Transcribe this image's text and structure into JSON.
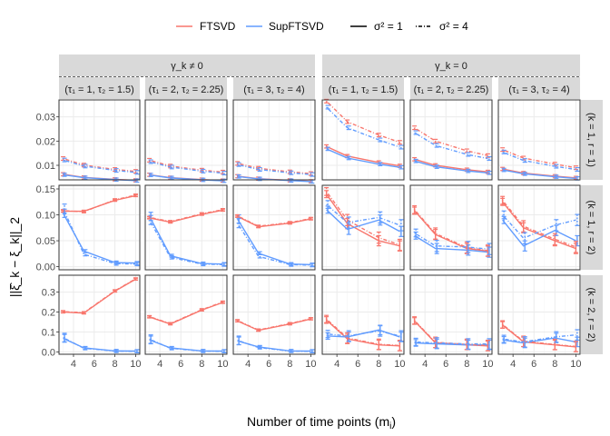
{
  "chart_data": {
    "type": "line",
    "xlabel": "Number of time points (m",
    "xlabel_sub": "i",
    "xlabel_close": ")",
    "ylabel": "||ξ̂_k − ξ_k||_2",
    "x": [
      3,
      5,
      8,
      10
    ],
    "x_ticks": [
      4,
      6,
      8,
      10
    ],
    "legend": {
      "placement": "top",
      "methods": [
        {
          "name": "FTSVD",
          "color": "#F8766D"
        },
        {
          "name": "SupFTSVD",
          "color": "#619CFF"
        }
      ],
      "linetypes": [
        {
          "name": "σ² = 1",
          "style": "solid"
        },
        {
          "name": "σ² = 4",
          "style": "dotdash"
        }
      ]
    },
    "groups": [
      "γ_k ≠ 0",
      "γ_k = 0"
    ],
    "columns": [
      "(τ₁ = 1, τ₂ = 1.5)",
      "(τ₁ = 2, τ₂ = 2.25)",
      "(τ₁ = 3, τ₂ = 4)",
      "(τ₁ = 1, τ₂ = 1.5)",
      "(τ₁ = 2, τ₂ = 2.25)",
      "(τ₁ = 3, τ₂ = 4)"
    ],
    "rows": [
      {
        "label": "(k = 1, r = 1)",
        "ylim": [
          0.004,
          0.037
        ],
        "yticks": [
          0.01,
          0.02,
          0.03
        ],
        "ytick_labels": [
          "0.01",
          "0.02",
          "0.03"
        ],
        "panels": [
          {
            "FTSVD_1": [
              0.0063,
              0.005,
              0.0042,
              0.0038
            ],
            "SupFTSVD_1": [
              0.0061,
              0.0049,
              0.0041,
              0.0037
            ],
            "FTSVD_4": [
              0.0128,
              0.0101,
              0.0083,
              0.0075
            ],
            "SupFTSVD_4": [
              0.0122,
              0.0097,
              0.0079,
              0.0071
            ]
          },
          {
            "FTSVD_1": [
              0.0061,
              0.0049,
              0.0041,
              0.0037
            ],
            "SupFTSVD_1": [
              0.006,
              0.0048,
              0.004,
              0.0036
            ],
            "FTSVD_4": [
              0.0121,
              0.0097,
              0.008,
              0.0072
            ],
            "SupFTSVD_4": [
              0.0115,
              0.0093,
              0.0076,
              0.0068
            ]
          },
          {
            "FTSVD_1": [
              0.0055,
              0.0045,
              0.0038,
              0.0034
            ],
            "SupFTSVD_1": [
              0.0054,
              0.0044,
              0.0037,
              0.0033
            ],
            "FTSVD_4": [
              0.0108,
              0.0088,
              0.0073,
              0.0066
            ],
            "SupFTSVD_4": [
              0.0103,
              0.0083,
              0.0069,
              0.0062
            ]
          },
          {
            "FTSVD_1": [
              0.0178,
              0.0138,
              0.0112,
              0.0098
            ],
            "SupFTSVD_1": [
              0.0168,
              0.013,
              0.0105,
              0.0092
            ],
            "FTSVD_4": [
              0.0365,
              0.028,
              0.0225,
              0.0195
            ],
            "SupFTSVD_4": [
              0.034,
              0.0255,
              0.0205,
              0.0175
            ]
          },
          {
            "FTSVD_1": [
              0.0125,
              0.01,
              0.0082,
              0.0073
            ],
            "SupFTSVD_1": [
              0.0118,
              0.0094,
              0.0077,
              0.0069
            ],
            "FTSVD_4": [
              0.0255,
              0.02,
              0.016,
              0.014
            ],
            "SupFTSVD_4": [
              0.0235,
              0.0182,
              0.0145,
              0.0128
            ]
          },
          {
            "FTSVD_1": [
              0.0085,
              0.0068,
              0.0055,
              0.0048
            ],
            "SupFTSVD_1": [
              0.0081,
              0.0065,
              0.0053,
              0.0046
            ],
            "FTSVD_4": [
              0.0165,
              0.013,
              0.0105,
              0.009
            ],
            "SupFTSVD_4": [
              0.0155,
              0.012,
              0.0096,
              0.0083
            ]
          }
        ]
      },
      {
        "label": "(k = 1, r = 2)",
        "ylim": [
          -0.006,
          0.157
        ],
        "yticks": [
          0.0,
          0.05,
          0.1,
          0.15
        ],
        "ytick_labels": [
          "0.00",
          "0.05",
          "0.10",
          "0.15"
        ],
        "panels": [
          {
            "FTSVD_1": [
              0.107,
              0.107,
              0.128,
              0.137
            ],
            "SupFTSVD_1": [
              0.103,
              0.03,
              0.008,
              0.007
            ],
            "FTSVD_4": [
              0.108,
              0.106,
              0.129,
              0.138
            ],
            "SupFTSVD_4": [
              0.112,
              0.024,
              0.006,
              0.005
            ]
          },
          {
            "FTSVD_1": [
              0.094,
              0.086,
              0.101,
              0.109
            ],
            "SupFTSVD_1": [
              0.097,
              0.021,
              0.006,
              0.005
            ],
            "FTSVD_4": [
              0.095,
              0.087,
              0.102,
              0.11
            ],
            "SupFTSVD_4": [
              0.09,
              0.018,
              0.005,
              0.004
            ]
          },
          {
            "FTSVD_1": [
              0.097,
              0.077,
              0.084,
              0.092
            ],
            "SupFTSVD_1": [
              0.092,
              0.026,
              0.005,
              0.004
            ],
            "FTSVD_4": [
              0.098,
              0.078,
              0.085,
              0.093
            ],
            "SupFTSVD_4": [
              0.084,
              0.02,
              0.004,
              0.003
            ]
          },
          {
            "FTSVD_1": [
              0.14,
              0.083,
              0.05,
              0.04
            ],
            "SupFTSVD_1": [
              0.11,
              0.072,
              0.09,
              0.068
            ],
            "FTSVD_4": [
              0.145,
              0.09,
              0.056,
              0.042
            ],
            "SupFTSVD_4": [
              0.12,
              0.085,
              0.095,
              0.08
            ]
          },
          {
            "FTSVD_1": [
              0.108,
              0.062,
              0.035,
              0.03
            ],
            "SupFTSVD_1": [
              0.06,
              0.035,
              0.032,
              0.028
            ],
            "FTSVD_4": [
              0.11,
              0.064,
              0.037,
              0.031
            ],
            "SupFTSVD_4": [
              0.065,
              0.04,
              0.038,
              0.034
            ]
          },
          {
            "FTSVD_1": [
              0.125,
              0.075,
              0.05,
              0.035
            ],
            "SupFTSVD_1": [
              0.09,
              0.04,
              0.07,
              0.05
            ],
            "FTSVD_4": [
              0.128,
              0.078,
              0.053,
              0.038
            ],
            "SupFTSVD_4": [
              0.1,
              0.055,
              0.08,
              0.09
            ]
          }
        ]
      },
      {
        "label": "(k = 2, r = 2)",
        "ylim": [
          -0.012,
          0.385
        ],
        "yticks": [
          0.0,
          0.1,
          0.2,
          0.3
        ],
        "ytick_labels": [
          "0.0",
          "0.1",
          "0.2",
          "0.3"
        ],
        "panels": [
          {
            "FTSVD_1": [
              0.2,
              0.195,
              0.305,
              0.365
            ],
            "SupFTSVD_1": [
              0.068,
              0.02,
              0.005,
              0.004
            ],
            "FTSVD_4": [
              0.202,
              0.197,
              0.307,
              0.367
            ],
            "SupFTSVD_4": [
              0.072,
              0.018,
              0.004,
              0.003
            ]
          },
          {
            "FTSVD_1": [
              0.175,
              0.14,
              0.21,
              0.248
            ],
            "SupFTSVD_1": [
              0.06,
              0.02,
              0.005,
              0.004
            ],
            "FTSVD_4": [
              0.177,
              0.142,
              0.212,
              0.25
            ],
            "SupFTSVD_4": [
              0.064,
              0.018,
              0.004,
              0.003
            ]
          },
          {
            "FTSVD_1": [
              0.155,
              0.108,
              0.14,
              0.165
            ],
            "SupFTSVD_1": [
              0.055,
              0.025,
              0.005,
              0.004
            ],
            "FTSVD_4": [
              0.157,
              0.11,
              0.142,
              0.167
            ],
            "SupFTSVD_4": [
              0.058,
              0.022,
              0.004,
              0.003
            ]
          },
          {
            "FTSVD_1": [
              0.16,
              0.065,
              0.035,
              0.03
            ],
            "SupFTSVD_1": [
              0.08,
              0.075,
              0.11,
              0.075
            ],
            "FTSVD_4": [
              0.165,
              0.07,
              0.038,
              0.032
            ],
            "SupFTSVD_4": [
              0.09,
              0.08,
              0.105,
              0.08
            ]
          },
          {
            "FTSVD_1": [
              0.155,
              0.045,
              0.035,
              0.03
            ],
            "SupFTSVD_1": [
              0.045,
              0.04,
              0.035,
              0.035
            ],
            "FTSVD_4": [
              0.158,
              0.048,
              0.038,
              0.032
            ],
            "SupFTSVD_4": [
              0.05,
              0.045,
              0.04,
              0.04
            ]
          },
          {
            "FTSVD_1": [
              0.135,
              0.05,
              0.035,
              0.025
            ],
            "SupFTSVD_1": [
              0.06,
              0.045,
              0.07,
              0.05
            ],
            "FTSVD_4": [
              0.138,
              0.053,
              0.037,
              0.027
            ],
            "SupFTSVD_4": [
              0.065,
              0.05,
              0.075,
              0.085
            ]
          }
        ]
      }
    ]
  }
}
